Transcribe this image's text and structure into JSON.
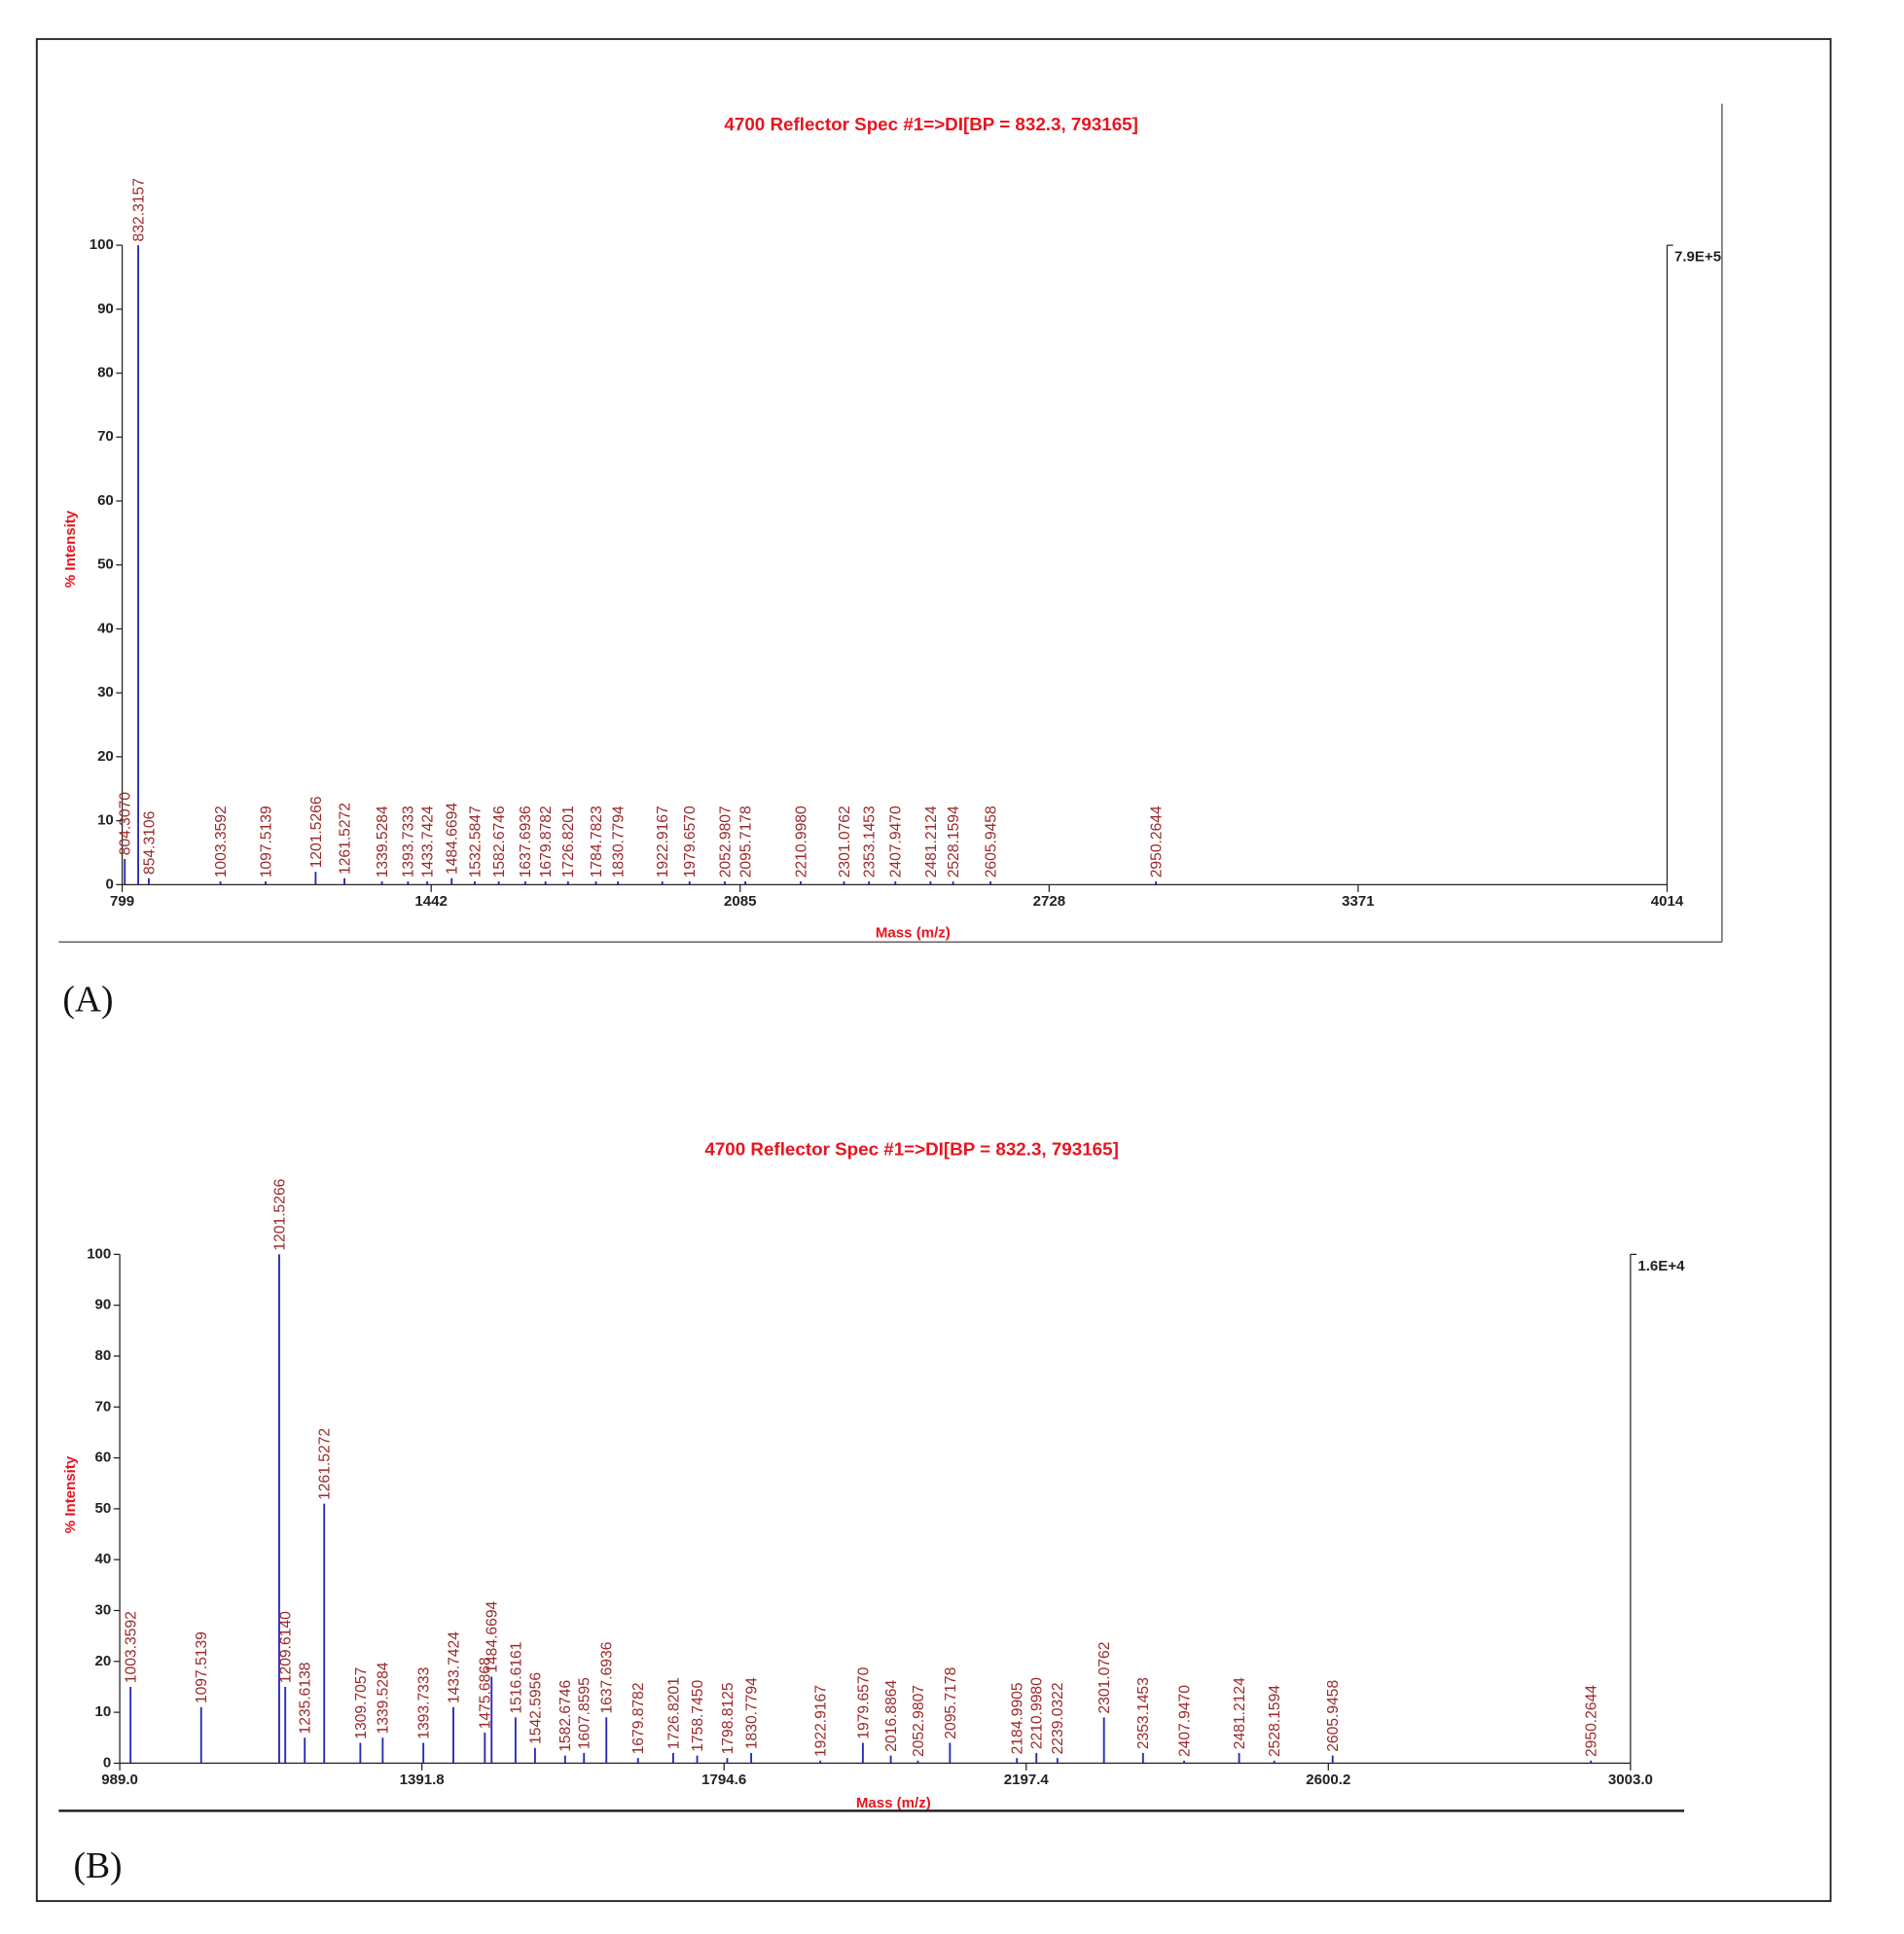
{
  "chart_data": [
    {
      "type": "stick",
      "title": "4700 Reflector Spec #1=>DI[BP = 832.3, 793165]",
      "x_label": "Mass (m/z)",
      "y_label": "% Intensity",
      "max_intensity_label": "7.9E+5",
      "panel_label": "(A)",
      "color": "#2a2ab8",
      "label_color": "#9a2a2a",
      "xlim": [
        799,
        4014
      ],
      "xticks": [
        799,
        1442,
        2085,
        2728,
        3371,
        4014
      ],
      "ylim": [
        0,
        100
      ],
      "yticks": [
        0,
        10,
        20,
        30,
        40,
        50,
        60,
        70,
        80,
        90,
        100
      ],
      "x": [
        804.307,
        832.3157,
        854.3106,
        1003.3592,
        1097.5139,
        1201.5266,
        1261.5272,
        1339.5284,
        1393.7333,
        1433.7424,
        1484.6694,
        1532.5847,
        1582.6746,
        1637.6936,
        1679.8782,
        1726.8201,
        1784.7823,
        1830.7794,
        1922.9167,
        1979.657,
        2052.9807,
        2095.7178,
        2210.998,
        2301.0762,
        2353.1453,
        2407.947,
        2481.2124,
        2528.1594,
        2605.9458,
        2950.2644
      ],
      "x_labels": [
        "804.3070",
        "832.3157",
        "854.3106",
        "1003.3592",
        "1097.5139",
        "1201.5266",
        "1261.5272",
        "1339.5284",
        "1393.7333",
        "1433.7424",
        "1484.6694",
        "1532.5847",
        "1582.6746",
        "1637.6936",
        "1679.8782",
        "1726.8201",
        "1784.7823",
        "1830.7794",
        "1922.9167",
        "1979.6570",
        "2052.9807",
        "2095.7178",
        "2210.9980",
        "2301.0762",
        "2353.1453",
        "2407.9470",
        "2481.2124",
        "2528.1594",
        "2605.9458",
        "2950.2644"
      ],
      "values": [
        4,
        100,
        1,
        0.5,
        0.5,
        2,
        1,
        0.5,
        0.5,
        0.5,
        1,
        0.5,
        0.5,
        0.5,
        0.5,
        0.5,
        0.5,
        0.5,
        0.5,
        0.5,
        0.5,
        0.5,
        0.5,
        0.5,
        0.5,
        0.5,
        0.5,
        0.5,
        0.5,
        0.5
      ]
    },
    {
      "type": "stick",
      "title": "4700 Reflector Spec #1=>DI[BP = 832.3, 793165]",
      "x_label": "Mass (m/z)",
      "y_label": "% Intensity",
      "max_intensity_label": "1.6E+4",
      "panel_label": "(B)",
      "color": "#2a2ab8",
      "label_color": "#9a2a2a",
      "xlim": [
        989,
        3003
      ],
      "xticks": [
        {
          "value": 989,
          "label": "989.0"
        },
        1391.8,
        1794.6,
        2197.4,
        2600.2,
        {
          "value": 3003,
          "label": "3003.0"
        }
      ],
      "ylim": [
        0,
        100
      ],
      "yticks": [
        0,
        10,
        20,
        30,
        40,
        50,
        60,
        70,
        80,
        90,
        100
      ],
      "x": [
        1003.3592,
        1097.5139,
        1201.5266,
        1209.614,
        1235.6138,
        1261.5272,
        1309.7057,
        1339.5284,
        1393.7333,
        1433.7424,
        1475.6868,
        1484.6694,
        1516.6161,
        1542.5956,
        1582.6746,
        1607.8595,
        1637.6936,
        1679.8782,
        1726.8201,
        1758.745,
        1798.8125,
        1830.7794,
        1922.9167,
        1979.657,
        2016.8864,
        2052.9807,
        2095.7178,
        2184.9905,
        2210.998,
        2239.0322,
        2301.0762,
        2353.1453,
        2407.947,
        2481.2124,
        2528.1594,
        2605.9458,
        2950.2644
      ],
      "x_labels": [
        "1003.3592",
        "1097.5139",
        "1201.5266",
        "1209.6140",
        "1235.6138",
        "1261.5272",
        "1309.7057",
        "1339.5284",
        "1393.7333",
        "1433.7424",
        "1475.6868",
        "1484.6694",
        "1516.6161",
        "1542.5956",
        "1582.6746",
        "1607.8595",
        "1637.6936",
        "1679.8782",
        "1726.8201",
        "1758.7450",
        "1798.8125",
        "1830.7794",
        "1922.9167",
        "1979.6570",
        "2016.8864",
        "2052.9807",
        "2095.7178",
        "2184.9905",
        "2210.9980",
        "2239.0322",
        "2301.0762",
        "2353.1453",
        "2407.9470",
        "2481.2124",
        "2528.1594",
        "2605.9458",
        "2950.2644"
      ],
      "values": [
        15,
        11,
        100,
        15,
        5,
        51,
        4,
        5,
        4,
        11,
        6,
        17,
        9,
        3,
        1.5,
        2,
        9,
        1,
        2,
        1.5,
        1,
        2,
        0.5,
        4,
        1.5,
        0.5,
        4,
        1,
        2,
        1,
        9,
        2,
        0.5,
        2,
        0.5,
        1.5,
        0.5
      ]
    }
  ]
}
